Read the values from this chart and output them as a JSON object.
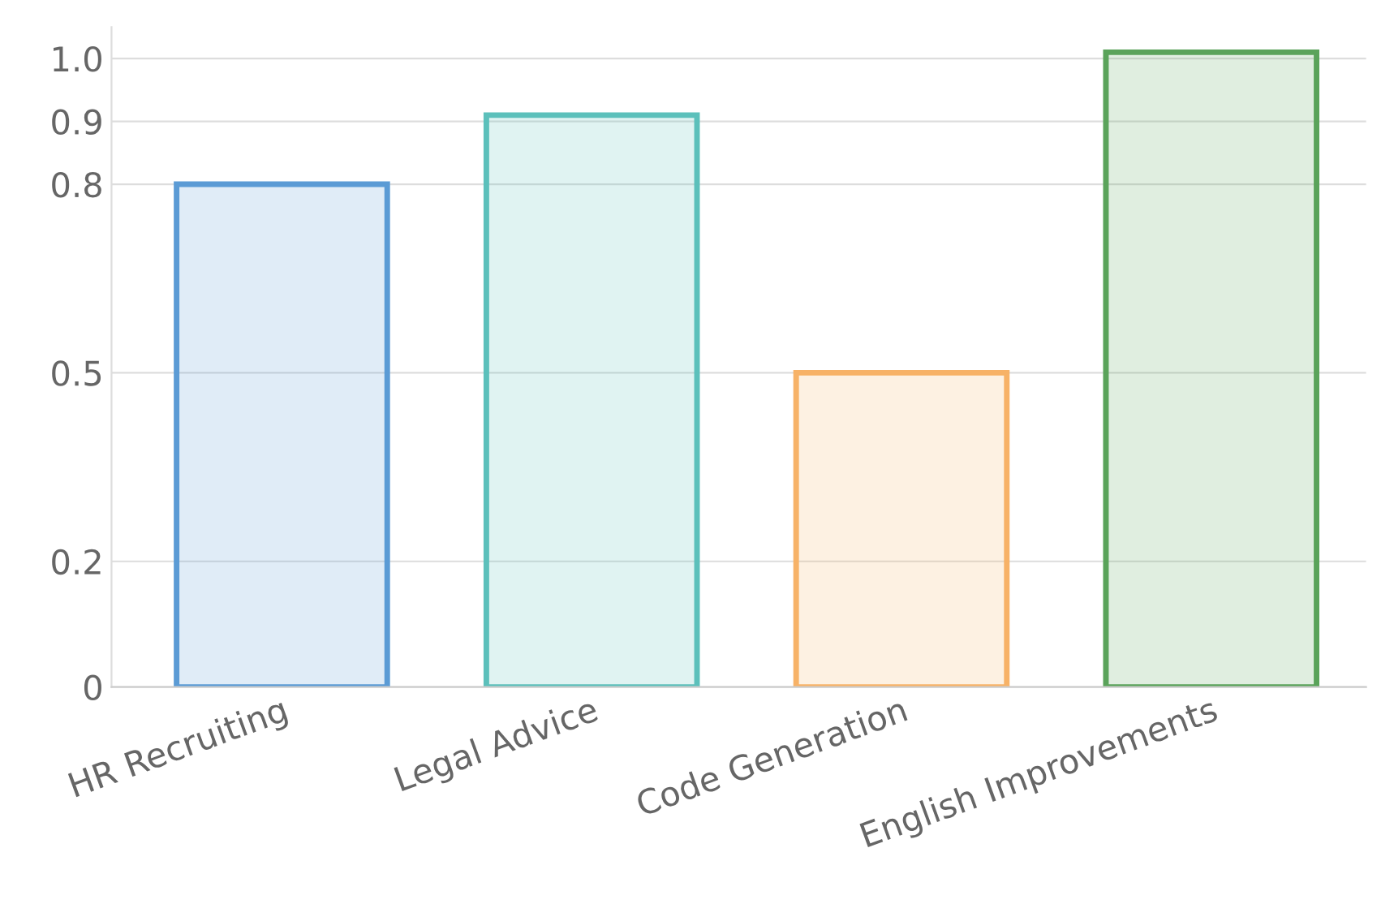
{
  "chart_data": {
    "type": "bar",
    "categories": [
      "HR Recruiting",
      "Legal Advice",
      "Code Generation",
      "English Improvements"
    ],
    "values": [
      0.8,
      0.91,
      0.5,
      1.01
    ],
    "colors": [
      "#5b9bd5",
      "#5cc0bb",
      "#f7b267",
      "#5aa35a"
    ],
    "ylim": [
      0,
      1.05
    ],
    "yticks": [
      0,
      0.2,
      0.5,
      0.8,
      0.9,
      {
        "value": 1.0,
        "label": "1.0"
      }
    ],
    "grid": "y"
  }
}
